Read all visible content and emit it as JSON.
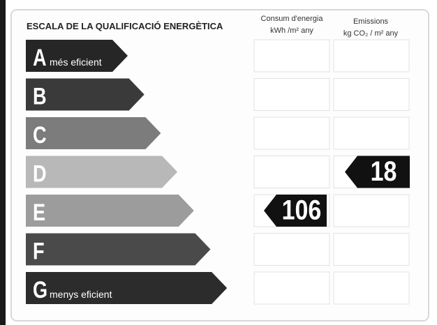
{
  "header": {
    "title": "ESCALA DE LA QUALIFICACIÓ ENERGÈTICA",
    "energy_column": [
      "Consum d'energia",
      "kWh /m² any"
    ],
    "emissions_column": [
      "Emissions",
      "kg CO₂ / m² any"
    ]
  },
  "rows": [
    {
      "letter": "A",
      "label": "més eficient"
    },
    {
      "letter": "B"
    },
    {
      "letter": "C"
    },
    {
      "letter": "D",
      "emissions": 18
    },
    {
      "letter": "E",
      "energy": 106
    },
    {
      "letter": "F"
    },
    {
      "letter": "G",
      "label": "menys eficient"
    }
  ]
}
